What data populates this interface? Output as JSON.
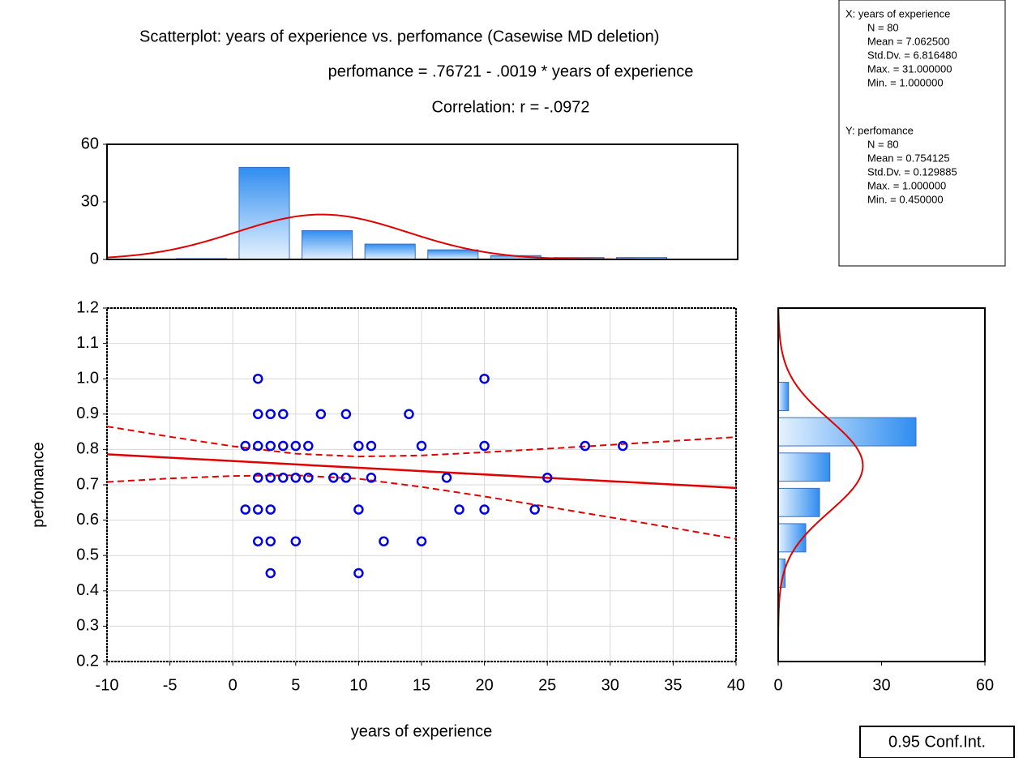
{
  "chart_data": {
    "type": "scatter",
    "title": "Scatterplot: years of experience vs. perfomance (Casewise MD deletion)",
    "regression": {
      "label": "perfomance = .76721 - .0019  * years of experience",
      "intercept": 0.76721,
      "slope": -0.0019,
      "color": "#e00000"
    },
    "correlation": {
      "label": "Correlation: r = -.0972",
      "value": -0.0972
    },
    "x_label": "years of experience",
    "y_label": "perfomance",
    "x": [
      2,
      20,
      2,
      3,
      4,
      7,
      9,
      14,
      1,
      2,
      3,
      4,
      5,
      6,
      10,
      11,
      15,
      20,
      28,
      31,
      2,
      3,
      4,
      5,
      6,
      8,
      9,
      11,
      17,
      25,
      1,
      2,
      3,
      10,
      18,
      20,
      24,
      2,
      3,
      5,
      12,
      15,
      3,
      10
    ],
    "values": [
      1.0,
      1.0,
      0.9,
      0.9,
      0.9,
      0.9,
      0.9,
      0.9,
      0.81,
      0.81,
      0.81,
      0.81,
      0.81,
      0.81,
      0.81,
      0.81,
      0.81,
      0.81,
      0.81,
      0.81,
      0.72,
      0.72,
      0.72,
      0.72,
      0.72,
      0.72,
      0.72,
      0.72,
      0.72,
      0.72,
      0.63,
      0.63,
      0.63,
      0.63,
      0.63,
      0.63,
      0.63,
      0.54,
      0.54,
      0.54,
      0.54,
      0.54,
      0.45,
      0.45
    ],
    "color": "#0000e0",
    "ci": {
      "label": "0.95 Conf.Int.",
      "x": [
        -10,
        -5,
        0,
        5,
        10,
        15,
        20,
        25,
        30,
        35,
        40
      ],
      "upper": [
        0.865,
        0.836,
        0.809,
        0.788,
        0.78,
        0.783,
        0.792,
        0.802,
        0.813,
        0.824,
        0.835
      ],
      "lower": [
        0.708,
        0.718,
        0.725,
        0.727,
        0.717,
        0.694,
        0.667,
        0.638,
        0.608,
        0.578,
        0.547
      ]
    },
    "xlim": [
      -10,
      40
    ],
    "xticks": [
      -10,
      -5,
      0,
      5,
      10,
      15,
      20,
      25,
      30,
      35,
      40
    ],
    "ylim": [
      0.2,
      1.2
    ],
    "yticks": [
      0.2,
      0.3,
      0.4,
      0.5,
      0.6,
      0.7,
      0.8,
      0.9,
      {
        "value": 1,
        "label": "1.0"
      },
      1.1,
      1.2
    ],
    "grid": true,
    "x_hist": {
      "bins": [
        -5,
        0,
        5,
        10,
        15,
        20,
        25,
        30,
        35
      ],
      "counts": [
        0,
        48,
        15,
        8,
        5,
        2,
        1,
        1
      ],
      "ylim": [
        0,
        60
      ],
      "yticks": [
        0,
        30,
        60
      ]
    },
    "y_hist": {
      "bins": [
        0.4,
        0.5,
        0.6,
        0.7,
        0.8,
        0.9,
        1.0
      ],
      "counts": [
        2,
        8,
        12,
        15,
        40,
        3
      ],
      "xlim": [
        0,
        60
      ],
      "xticks": [
        0,
        30,
        60
      ]
    },
    "x_stats": {
      "header": "X:  years of experience",
      "items": [
        {
          "value": 80,
          "label": "N = 80"
        },
        {
          "value": 7.0625,
          "label": "Mean = 7.062500"
        },
        {
          "value": 6.81648,
          "label": "Std.Dv. = 6.816480"
        },
        {
          "value": 31,
          "label": "Max. = 31.000000"
        },
        {
          "value": 1,
          "label": "Min. = 1.000000"
        }
      ]
    },
    "y_stats": {
      "header": "Y:  perfomance",
      "items": [
        {
          "value": 80,
          "label": "N = 80"
        },
        {
          "value": 0.754125,
          "label": "Mean = 0.754125"
        },
        {
          "value": 0.129885,
          "label": "Std.Dv. = 0.129885"
        },
        {
          "value": 1,
          "label": "Max. = 1.000000"
        },
        {
          "value": 0.45,
          "label": "Min. = 0.450000"
        }
      ]
    }
  }
}
